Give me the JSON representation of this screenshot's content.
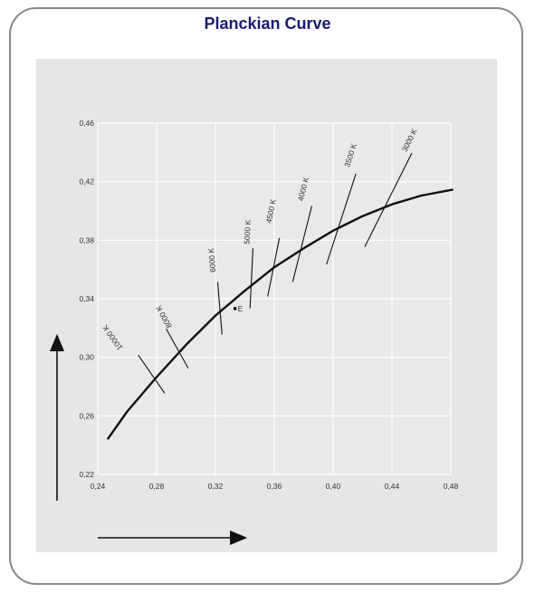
{
  "chart_data": {
    "type": "line",
    "title": "Planckian Curve",
    "xlabel": "",
    "ylabel": "",
    "xlim": [
      0.24,
      0.48
    ],
    "ylim": [
      0.22,
      0.46
    ],
    "x_ticks": [
      "0,24",
      "0,28",
      "0,32",
      "0,36",
      "0,40",
      "0,44",
      "0,48"
    ],
    "y_ticks": [
      "0,22",
      "0,26",
      "0,30",
      "0,34",
      "0,38",
      "0,42",
      "0,46"
    ],
    "grid": true,
    "series": [
      {
        "x": [
          0.247,
          0.26,
          0.28,
          0.3,
          0.32,
          0.34,
          0.36,
          0.38,
          0.4,
          0.42,
          0.44,
          0.46,
          0.481
        ],
        "y": [
          0.2445,
          0.263,
          0.2865,
          0.3085,
          0.3285,
          0.3455,
          0.3615,
          0.3745,
          0.3865,
          0.3965,
          0.4045,
          0.4105,
          0.4145
        ]
      }
    ],
    "isotherms": [
      {
        "label": "10000 K",
        "x1": 0.2675,
        "y1": 0.3015,
        "x2": 0.2855,
        "y2": 0.2755,
        "lx": 0.2515,
        "ly": 0.3145
      },
      {
        "label": "8000 K",
        "x1": 0.2865,
        "y1": 0.3195,
        "x2": 0.3015,
        "y2": 0.2925,
        "lx": 0.2865,
        "ly": 0.3285
      },
      {
        "label": "6000 K",
        "x1": 0.3215,
        "y1": 0.3515,
        "x2": 0.3245,
        "y2": 0.3155,
        "lx": 0.3195,
        "ly": 0.3665
      },
      {
        "label": "5000 K",
        "x1": 0.3455,
        "y1": 0.3745,
        "x2": 0.3435,
        "y2": 0.3335,
        "lx": 0.3435,
        "ly": 0.3855
      },
      {
        "label": "4500 K",
        "x1": 0.3635,
        "y1": 0.3815,
        "x2": 0.3555,
        "y2": 0.3415,
        "lx": 0.3595,
        "ly": 0.3995
      },
      {
        "label": "4000 K",
        "x1": 0.3855,
        "y1": 0.4035,
        "x2": 0.3725,
        "y2": 0.3515,
        "lx": 0.3815,
        "ly": 0.4145
      },
      {
        "label": "3500 K",
        "x1": 0.4155,
        "y1": 0.4255,
        "x2": 0.3955,
        "y2": 0.3635,
        "lx": 0.4135,
        "ly": 0.4375
      },
      {
        "label": "3000 K",
        "x1": 0.4535,
        "y1": 0.4395,
        "x2": 0.4215,
        "y2": 0.3755,
        "lx": 0.4535,
        "ly": 0.4475
      }
    ],
    "annotation": {
      "label": "E",
      "x": 0.3333,
      "y": 0.3333
    },
    "legend": "none"
  }
}
